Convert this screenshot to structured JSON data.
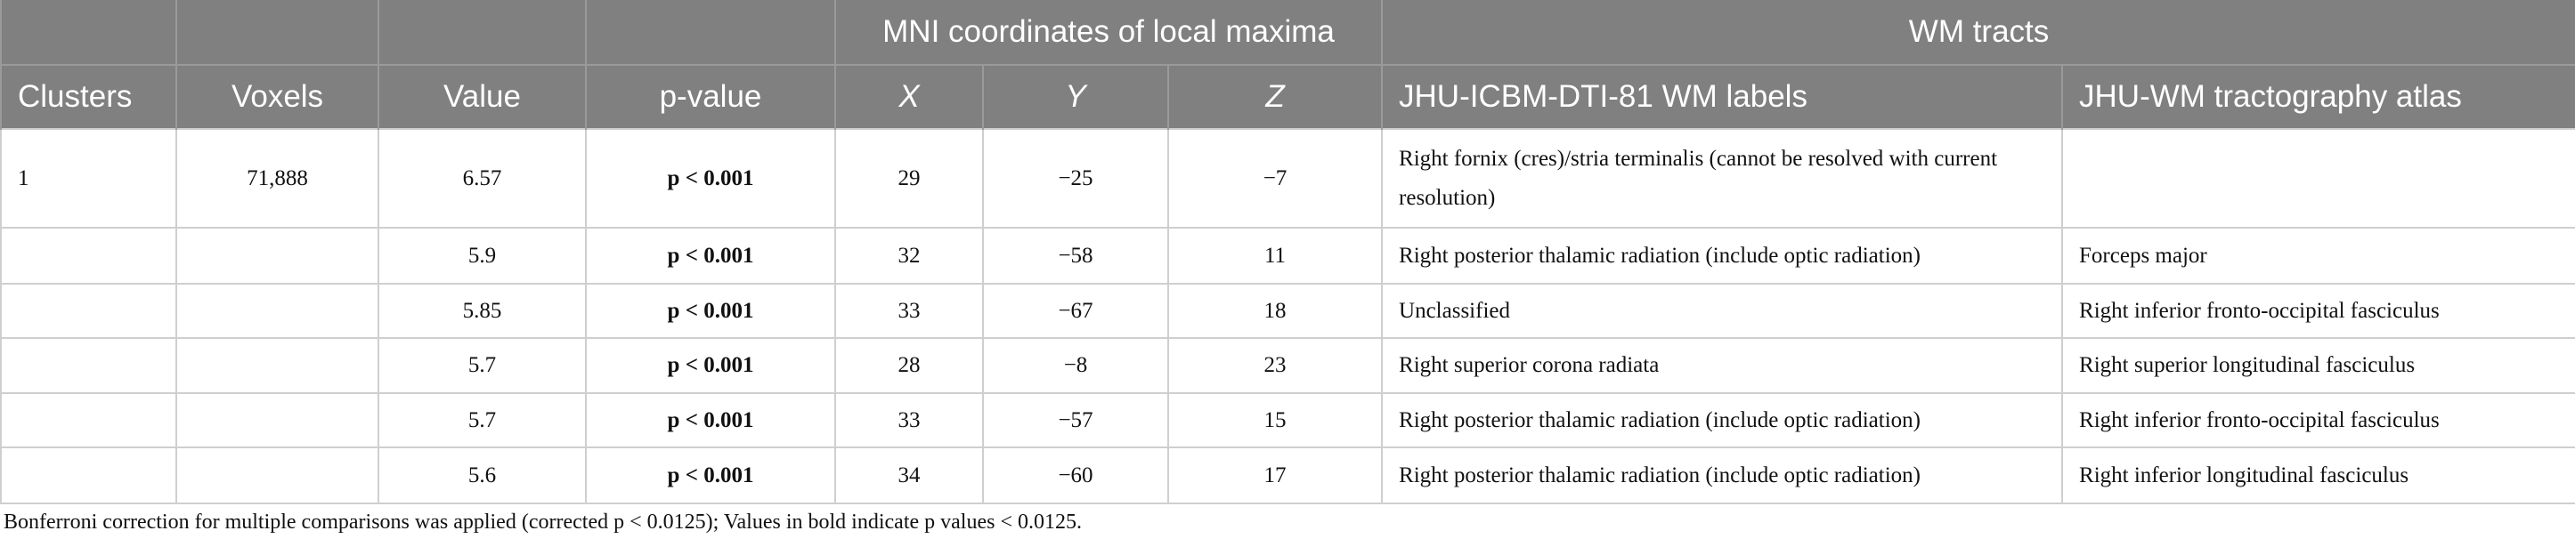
{
  "header": {
    "group_row": [
      "MNI coordinates of local maxima",
      "WM tracts"
    ],
    "columns": [
      "Clusters",
      "Voxels",
      "Value",
      "p-value",
      "X",
      "Y",
      "Z",
      "JHU-ICBM-DTI-81 WM labels",
      "JHU-WM tractography atlas"
    ]
  },
  "table": {
    "rows": [
      [
        "1",
        "71,888",
        "6.57",
        "p < 0.001",
        "29",
        "−25",
        "−7",
        "Right fornix (cres)/stria terminalis (cannot be resolved with current resolution)",
        null
      ],
      [
        null,
        null,
        "5.9",
        "p < 0.001",
        "32",
        "−58",
        "11",
        "Right posterior thalamic radiation (include optic radiation)",
        "Forceps major"
      ],
      [
        null,
        null,
        "5.85",
        "p < 0.001",
        "33",
        "−67",
        "18",
        "Unclassified",
        "Right inferior fronto-occipital fasciculus"
      ],
      [
        null,
        null,
        "5.7",
        "p < 0.001",
        "28",
        "−8",
        "23",
        "Right superior corona radiata",
        "Right superior longitudinal fasciculus"
      ],
      [
        null,
        null,
        "5.7",
        "p < 0.001",
        "33",
        "−57",
        "15",
        "Right posterior thalamic radiation (include optic radiation)",
        "Right inferior fronto-occipital fasciculus"
      ],
      [
        null,
        null,
        "5.6",
        "p < 0.001",
        "34",
        "−60",
        "17",
        "Right posterior thalamic radiation (include optic radiation)",
        "Right inferior longitudinal fasciculus"
      ]
    ]
  },
  "footnote": "Bonferroni correction for multiple comparisons was applied (corrected p < 0.0125); Values in bold indicate p values < 0.0125."
}
